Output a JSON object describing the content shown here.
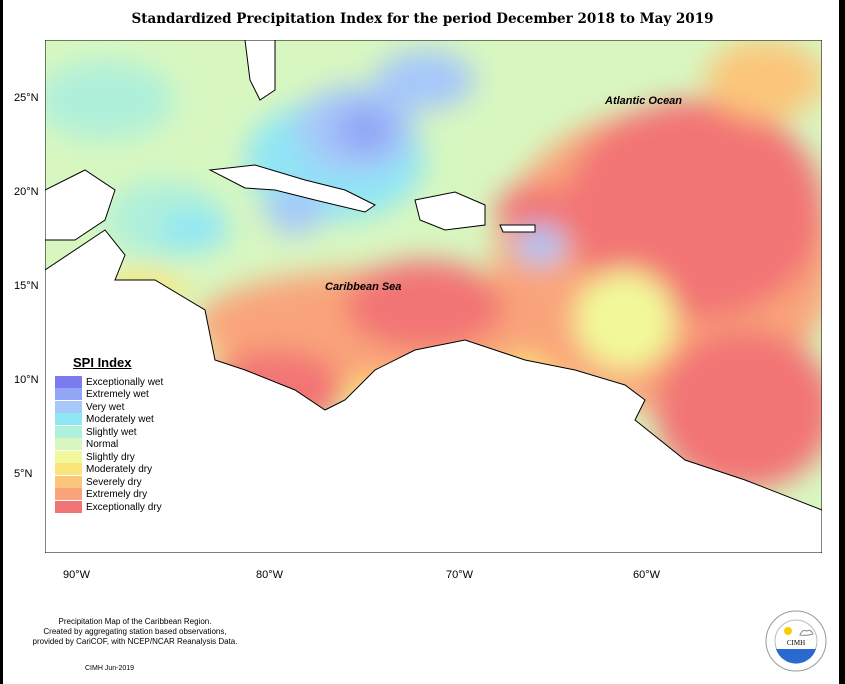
{
  "title": "Standardized Precipitation Index for the period December 2018 to May 2019",
  "map": {
    "labels": {
      "atlantic": "Atlantic Ocean",
      "caribbean": "Caribbean Sea"
    },
    "lat_ticks": [
      "25°N",
      "20°N",
      "15°N",
      "10°N",
      "5°N"
    ],
    "lon_ticks": [
      "90°W",
      "80°W",
      "70°W",
      "60°W"
    ]
  },
  "legend": {
    "title": "SPI Index",
    "items": [
      {
        "label": "Exceptionally wet",
        "color": "#7b7bef"
      },
      {
        "label": "Extremely wet",
        "color": "#93a6f5"
      },
      {
        "label": "Very wet",
        "color": "#a6c8fa"
      },
      {
        "label": "Moderately wet",
        "color": "#8fe6f5"
      },
      {
        "label": "Slightly wet",
        "color": "#aff0da"
      },
      {
        "label": "Normal",
        "color": "#d8f7c0"
      },
      {
        "label": "Slightly dry",
        "color": "#f2f99a"
      },
      {
        "label": "Moderately dry",
        "color": "#fae57a"
      },
      {
        "label": "Severely dry",
        "color": "#fbc67a"
      },
      {
        "label": "Extremely dry",
        "color": "#f9a47a"
      },
      {
        "label": "Exceptionally dry",
        "color": "#f27575"
      }
    ]
  },
  "footer": {
    "lines": [
      "Precipitation Map of the Caribbean Region.",
      "Created by aggregating station based observations,",
      "provided by CariCOF, with NCEP/NCAR Reanalysis Data."
    ],
    "stamp": "CIMH Jun-2019"
  },
  "logo": {
    "text": "CIMH",
    "ring": "Caribbean Institute for Meteorology and Hydrology"
  }
}
